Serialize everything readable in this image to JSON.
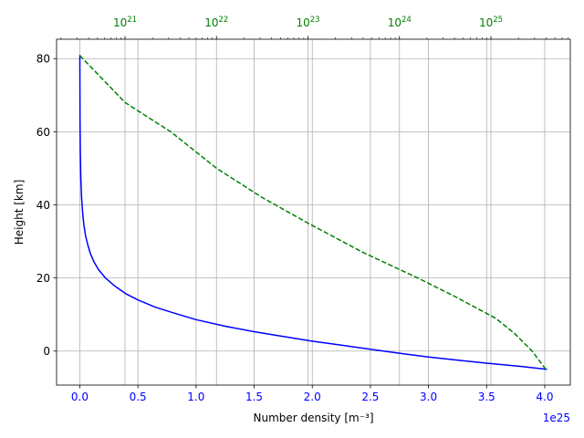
{
  "chart_data": {
    "type": "line",
    "xlabel": "Number density [m⁻³]",
    "ylabel": "Height [km]",
    "x_offset_label": "1e25",
    "xlim": [
      -0.2,
      4.22
    ],
    "ylim": [
      -9.3,
      85.3
    ],
    "x_ticks": [
      0.0,
      0.5,
      1.0,
      1.5,
      2.0,
      2.5,
      3.0,
      3.5,
      4.0
    ],
    "x_tick_labels": [
      "0.0",
      "0.5",
      "1.0",
      "1.5",
      "2.0",
      "2.5",
      "3.0",
      "3.5",
      "4.0"
    ],
    "y_ticks": [
      0,
      20,
      40,
      60,
      80
    ],
    "y_tick_labels": [
      "0",
      "20",
      "40",
      "60",
      "80"
    ],
    "top_axis": {
      "scale": "log",
      "color": "#008000",
      "ticks": [
        21,
        22,
        23,
        24,
        25
      ],
      "tick_label_base": "10",
      "tick_label_exponents": [
        "21",
        "22",
        "23",
        "24",
        "25"
      ]
    },
    "grid": true,
    "series": [
      {
        "style": "solid",
        "color": "#0000ff",
        "axis": "bottom",
        "x": [
          4.02,
          3.8,
          3.5,
          3.2,
          3.0,
          2.75,
          2.5,
          2.25,
          2.0,
          1.75,
          1.5,
          1.25,
          1.0,
          0.8,
          0.65,
          0.5,
          0.4,
          0.3,
          0.22,
          0.16,
          0.12,
          0.09,
          0.07,
          0.05,
          0.035,
          0.025,
          0.015,
          0.008,
          0.004,
          0.002,
          0.0005
        ],
        "y": [
          -5,
          -4.2,
          -3.3,
          -2.3,
          -1.6,
          -0.6,
          0.5,
          1.6,
          2.7,
          4.0,
          5.3,
          6.8,
          8.6,
          10.5,
          12.0,
          14.0,
          15.6,
          17.8,
          20.0,
          22.3,
          24.5,
          26.8,
          28.9,
          31.5,
          34.5,
          37.5,
          42.0,
          48.0,
          55.0,
          63.0,
          81.0
        ]
      },
      {
        "style": "dashed",
        "color": "#008000",
        "axis": "top",
        "x": [
          25.6,
          25.45,
          25.25,
          25.05,
          24.6,
          24.2,
          23.6,
          23.0,
          22.5,
          22.0,
          21.5,
          21.0,
          20.5
        ],
        "y": [
          -5,
          0,
          5,
          9,
          15,
          20,
          27,
          35,
          42,
          50,
          60,
          68,
          81
        ]
      }
    ]
  }
}
